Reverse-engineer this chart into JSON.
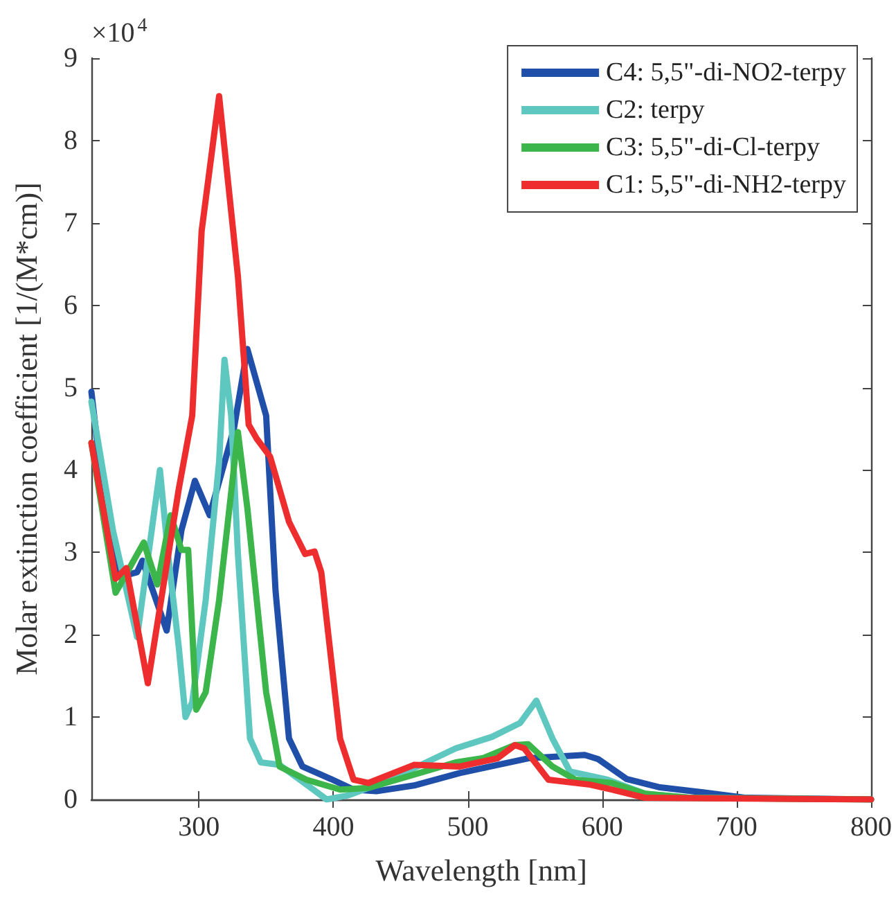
{
  "chart_data": {
    "type": "line",
    "xlabel": "Wavelength [nm]",
    "ylabel": "Molar extinction coefficient [1/(M*cm)]",
    "annotations": [
      "×10$^{4}$"
    ],
    "xlim": [
      220,
      800
    ],
    "xticks": [
      300,
      400,
      500,
      600,
      700,
      800
    ],
    "ylim": [
      0,
      9
    ],
    "yticks": [
      0,
      1,
      2,
      3,
      4,
      5,
      6,
      7,
      8,
      9
    ],
    "grid": false,
    "legend": "top right",
    "marker": "none",
    "line_style": "solid",
    "series": [
      {
        "name": "C4: 5,5\"-di-NO2-terpy",
        "color": "#1f4fa8",
        "x": [
          220,
          230,
          241,
          254,
          258,
          276,
          287,
          297,
          308,
          326,
          336,
          350,
          357,
          367,
          377,
          398,
          415,
          432,
          460,
          494,
          545,
          587,
          597,
          618,
          642,
          683,
          707,
          800
        ],
        "values": [
          4.95,
          3.54,
          2.7,
          2.76,
          2.9,
          2.05,
          3.27,
          3.87,
          3.45,
          4.5,
          5.47,
          4.66,
          2.53,
          0.74,
          0.4,
          0.25,
          0.12,
          0.1,
          0.17,
          0.32,
          0.5,
          0.54,
          0.49,
          0.25,
          0.15,
          0.07,
          0.02,
          0
        ]
      },
      {
        "name": "C2: terpy",
        "color": "#5ec8c0",
        "x": [
          220,
          236,
          254,
          271,
          277,
          285,
          290,
          295,
          305,
          315,
          319,
          324,
          329,
          338,
          346,
          360,
          385,
          395,
          411,
          442,
          491,
          518,
          539,
          551,
          563,
          576,
          604,
          632,
          666,
          800
        ],
        "values": [
          4.83,
          3.27,
          1.97,
          4.0,
          2.98,
          1.85,
          1.0,
          1.18,
          2.42,
          4.1,
          5.34,
          4.66,
          2.98,
          0.74,
          0.45,
          0.42,
          0.12,
          0.0,
          0.05,
          0.24,
          0.62,
          0.76,
          0.93,
          1.2,
          0.74,
          0.34,
          0.24,
          0.07,
          0.02,
          0
        ]
      },
      {
        "name": "C3: 5,5\"-di-Cl-terpy",
        "color": "#3cb54a",
        "x": [
          220,
          238,
          259,
          269,
          279,
          287,
          292,
          298,
          305,
          315,
          329,
          336,
          350,
          360,
          380,
          405,
          426,
          491,
          511,
          535,
          545,
          563,
          580,
          607,
          632,
          666,
          800
        ],
        "values": [
          4.33,
          2.51,
          3.12,
          2.61,
          3.45,
          3.03,
          3.03,
          1.09,
          1.3,
          2.42,
          4.46,
          3.54,
          1.3,
          0.4,
          0.24,
          0.12,
          0.14,
          0.45,
          0.5,
          0.66,
          0.67,
          0.4,
          0.24,
          0.2,
          0.07,
          0.02,
          0
        ]
      },
      {
        "name": "C1: 5,5\"-di-NH2-terpy",
        "color": "#ee2e2e",
        "x": [
          220,
          238,
          246,
          262,
          285,
          295,
          302,
          315,
          329,
          337,
          343,
          353,
          367,
          379,
          386,
          391,
          405,
          415,
          426,
          460,
          494,
          522,
          535,
          542,
          560,
          591,
          607,
          632,
          800
        ],
        "values": [
          4.33,
          2.68,
          2.81,
          1.41,
          3.77,
          4.66,
          6.9,
          8.54,
          6.35,
          4.55,
          4.38,
          4.16,
          3.37,
          2.98,
          3.01,
          2.76,
          0.74,
          0.24,
          0.2,
          0.42,
          0.4,
          0.5,
          0.66,
          0.62,
          0.24,
          0.18,
          0.12,
          0.02,
          0
        ]
      }
    ]
  }
}
